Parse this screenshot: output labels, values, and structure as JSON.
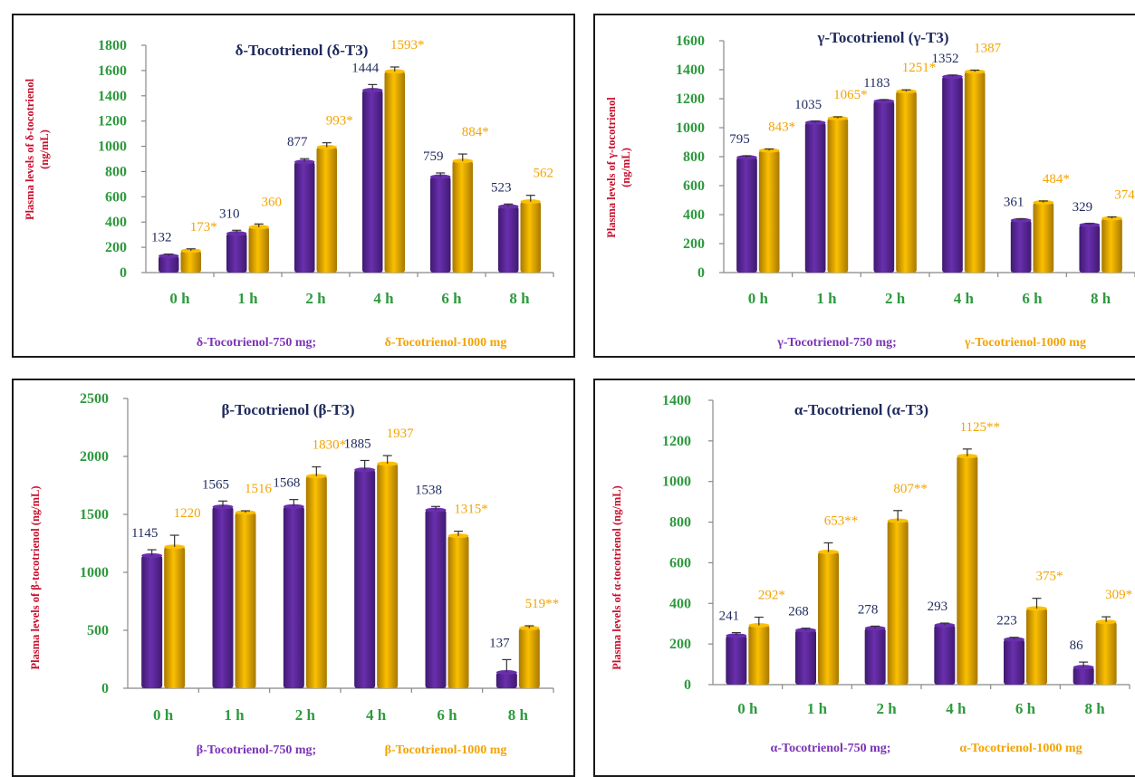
{
  "colors": {
    "series_a": "#6a2fae",
    "series_a_dark": "#3f1a70",
    "series_b": "#fbc000",
    "series_b_dark": "#a87800",
    "axis_text": "#2e9a3e",
    "ylabel_text": "#c8102e",
    "title_text": "#1f2a5c"
  },
  "chart_data": [
    {
      "type": "bar",
      "title": "δ-Tocotrienol (δ-T3)",
      "ylabel": "Plasma levels of δ-tocotrienol (ng/mL)",
      "ylabel_lines": [
        "Plasma levels of δ-tocotrienol",
        "(ng/mL)"
      ],
      "xlabel": "",
      "ylim": [
        0,
        1800
      ],
      "yticks": [
        0,
        200,
        400,
        600,
        800,
        1000,
        1200,
        1400,
        1600,
        1800
      ],
      "categories": [
        "0 h",
        "1 h",
        "2 h",
        "4 h",
        "6 h",
        "8 h"
      ],
      "series": [
        {
          "name": "δ-Tocotrienol-750 mg;",
          "values": [
            132,
            310,
            877,
            1444,
            759,
            523
          ],
          "labels": [
            "132",
            "310",
            "877",
            "1444",
            "759",
            "523"
          ],
          "errors": [
            15,
            25,
            25,
            45,
            30,
            20
          ]
        },
        {
          "name": "δ-Tocotrienol-1000 mg",
          "values": [
            173,
            360,
            993,
            1593,
            884,
            562
          ],
          "labels": [
            "173*",
            "360",
            "993*",
            "1593*",
            "884*",
            "562"
          ],
          "errors": [
            15,
            25,
            35,
            35,
            55,
            50
          ]
        }
      ],
      "legend_position": "bottom"
    },
    {
      "type": "bar",
      "title": "γ-Tocotrienol (γ-T3)",
      "ylabel": "Plasma levels of γ-tocotrienol (ng/mL)",
      "ylabel_lines": [
        "Plasma levels of γ-tocotrienol",
        "(ng/mL)"
      ],
      "xlabel": "",
      "ylim": [
        0,
        1600
      ],
      "yticks": [
        0,
        200,
        400,
        600,
        800,
        1000,
        1200,
        1400,
        1600
      ],
      "categories": [
        "0 h",
        "1 h",
        "2 h",
        "4 h",
        "6 h",
        "8 h"
      ],
      "series": [
        {
          "name": "γ-Tocotrienol-750 mg;",
          "values": [
            795,
            1035,
            1183,
            1352,
            361,
            329
          ],
          "labels": [
            "795",
            "1035",
            "1183",
            "1352",
            "361",
            "329"
          ],
          "errors": [
            10,
            10,
            10,
            10,
            10,
            10
          ]
        },
        {
          "name": "γ-Tocotrienol-1000 mg",
          "values": [
            843,
            1065,
            1251,
            1387,
            484,
            374
          ],
          "labels": [
            "843*",
            "1065*",
            "1251*",
            "1387",
            "484*",
            "374"
          ],
          "errors": [
            10,
            10,
            10,
            10,
            10,
            10
          ]
        }
      ],
      "legend_position": "bottom"
    },
    {
      "type": "bar",
      "title": "β-Tocotrienol (β-T3)",
      "ylabel": "Plasma levels of β-tocotrienol (ng/mL)",
      "ylabel_lines": [
        "Plasma levels of β-tocotrienol (ng/mL)"
      ],
      "xlabel": "",
      "ylim": [
        0,
        2500
      ],
      "yticks": [
        0,
        500,
        1000,
        1500,
        2000,
        2500
      ],
      "categories": [
        "0 h",
        "1 h",
        "2 h",
        "4 h",
        "6 h",
        "8 h"
      ],
      "series": [
        {
          "name": "β-Tocotrienol-750 mg;",
          "values": [
            1145,
            1565,
            1568,
            1885,
            1538,
            137
          ],
          "labels": [
            "1145",
            "1565",
            "1568",
            "1885",
            "1538",
            "137"
          ],
          "errors": [
            50,
            50,
            60,
            80,
            30,
            110
          ]
        },
        {
          "name": "β-Tocotrienol-1000 mg",
          "values": [
            1220,
            1516,
            1830,
            1937,
            1315,
            519
          ],
          "labels": [
            "1220",
            "1516",
            "1830*",
            "1937",
            "1315*",
            "519**"
          ],
          "errors": [
            100,
            15,
            80,
            70,
            40,
            20
          ]
        }
      ],
      "legend_position": "bottom"
    },
    {
      "type": "bar",
      "title": "α-Tocotrienol (α-T3)",
      "ylabel": "Plasma levels of α-tocotrienol (ng/mL)",
      "ylabel_lines": [
        "Plasma levels of α-tocotrienol (ng/mL)"
      ],
      "xlabel": "",
      "ylim": [
        0,
        1400
      ],
      "yticks": [
        0,
        200,
        400,
        600,
        800,
        1000,
        1200,
        1400
      ],
      "categories": [
        "0 h",
        "1 h",
        "2 h",
        "4 h",
        "6 h",
        "8 h"
      ],
      "series": [
        {
          "name": "α-Tocotrienol-750 mg;",
          "values": [
            241,
            268,
            278,
            293,
            223,
            86
          ],
          "labels": [
            "241",
            "268",
            "278",
            "293",
            "223",
            "86"
          ],
          "errors": [
            15,
            10,
            10,
            10,
            10,
            25
          ]
        },
        {
          "name": "α-Tocotrienol-1000 mg",
          "values": [
            292,
            653,
            807,
            1125,
            375,
            309
          ],
          "labels": [
            "292*",
            "653**",
            "807**",
            "1125**",
            "375*",
            "309*"
          ],
          "errors": [
            40,
            45,
            50,
            35,
            50,
            25
          ]
        }
      ],
      "legend_position": "bottom"
    }
  ]
}
